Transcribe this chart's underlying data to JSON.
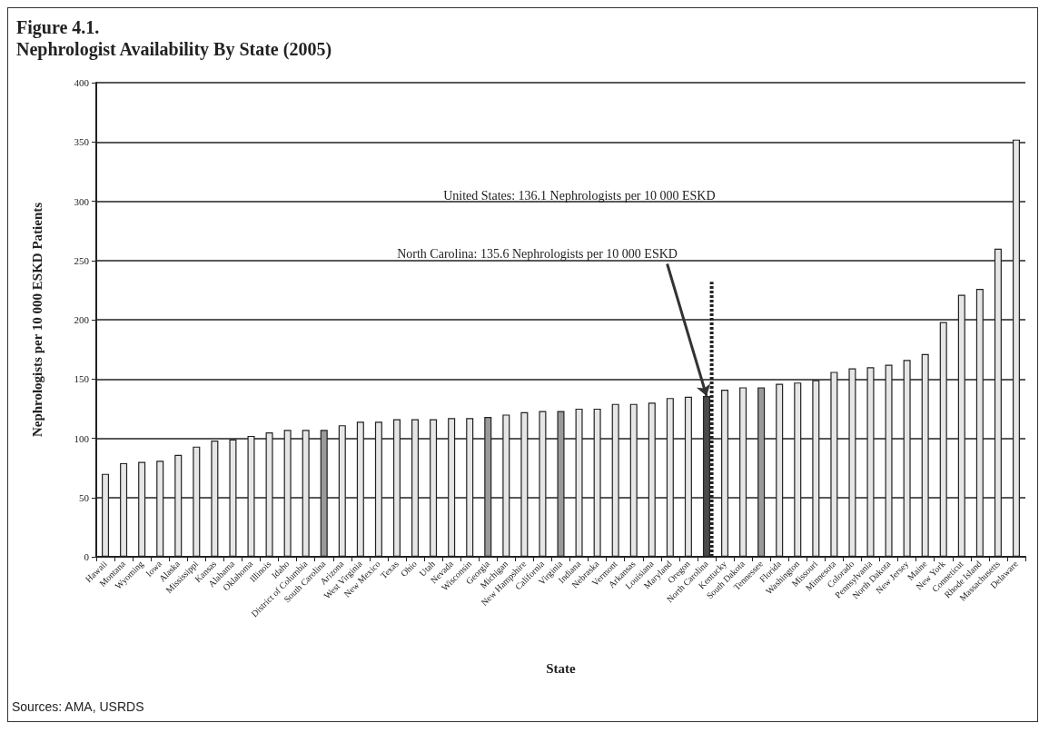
{
  "chart_data": {
    "type": "bar",
    "title": "Figure 4.1.",
    "subtitle": "Nephrologist Availability By State (2005)",
    "xlabel": "State",
    "ylabel": "Nephrologists per 10 000 ESKD Patients",
    "categories": [
      "Hawaii",
      "Montana",
      "Wyoming",
      "Iowa",
      "Alaska",
      "Mississippi",
      "Kansas",
      "Alabama",
      "Oklahoma",
      "Illinois",
      "Idaho",
      "District of Columbia",
      "South Carolina",
      "Arizona",
      "West Virginia",
      "New Mexico",
      "Texas",
      "Ohio",
      "Utah",
      "Nevada",
      "Wisconsin",
      "Georgia",
      "Michigan",
      "New Hampshire",
      "California",
      "Virginia",
      "Indiana",
      "Nebraska",
      "Vermont",
      "Arkansas",
      "Louisiana",
      "Maryland",
      "Oregon",
      "North Carolina",
      "Kentucky",
      "South Dakota",
      "Tennessee",
      "Florida",
      "Washington",
      "Missouri",
      "Minnesota",
      "Colorado",
      "Pennsylvania",
      "North Dakota",
      "New Jersey",
      "Maine",
      "New York",
      "Conneticut",
      "Rhode Island",
      "Massachusetts",
      "Delaware"
    ],
    "values": [
      70,
      79,
      80,
      81,
      86,
      93,
      98,
      99,
      102,
      105,
      107,
      107,
      107,
      111,
      114,
      114,
      116,
      116,
      116,
      117,
      117,
      118,
      120,
      122,
      123,
      123,
      125,
      125,
      129,
      129,
      130,
      134,
      135,
      135.6,
      141,
      143,
      143,
      146,
      147,
      149,
      156,
      159,
      160,
      162,
      166,
      171,
      198,
      221,
      226,
      260,
      352
    ],
    "colors": [
      "#e6e6e6",
      "#e6e6e6",
      "#e6e6e6",
      "#e6e6e6",
      "#e6e6e6",
      "#e6e6e6",
      "#e6e6e6",
      "#e6e6e6",
      "#e6e6e6",
      "#e6e6e6",
      "#e6e6e6",
      "#e6e6e6",
      "#9a9a9a",
      "#e6e6e6",
      "#e6e6e6",
      "#e6e6e6",
      "#e6e6e6",
      "#e6e6e6",
      "#e6e6e6",
      "#e6e6e6",
      "#e6e6e6",
      "#9a9a9a",
      "#e6e6e6",
      "#e6e6e6",
      "#e6e6e6",
      "#9a9a9a",
      "#e6e6e6",
      "#e6e6e6",
      "#e6e6e6",
      "#e6e6e6",
      "#e6e6e6",
      "#e6e6e6",
      "#e6e6e6",
      "#4a4a4a",
      "#e6e6e6",
      "#e6e6e6",
      "#9a9a9a",
      "#e6e6e6",
      "#e6e6e6",
      "#e6e6e6",
      "#e6e6e6",
      "#e6e6e6",
      "#e6e6e6",
      "#e6e6e6",
      "#e6e6e6",
      "#e6e6e6",
      "#e6e6e6",
      "#e6e6e6",
      "#e6e6e6",
      "#e6e6e6",
      "#e6e6e6"
    ],
    "ylim": [
      0,
      400
    ],
    "yticks": [
      0,
      50,
      100,
      150,
      200,
      250,
      300,
      350,
      400
    ],
    "grid": "y",
    "ref_lines": [
      {
        "axis": "x",
        "value": "North Carolina",
        "label": "United States: 136.1 Nephrologists per 10 000 ESKD",
        "line_style": "dotted",
        "color": "#222222"
      }
    ],
    "annotations": [
      {
        "text": "North Carolina: 135.6 Nephrologists per 10 000 ESKD",
        "x": "North Carolina",
        "y": 135.6
      },
      "Sources: AMA, USRDS"
    ]
  }
}
